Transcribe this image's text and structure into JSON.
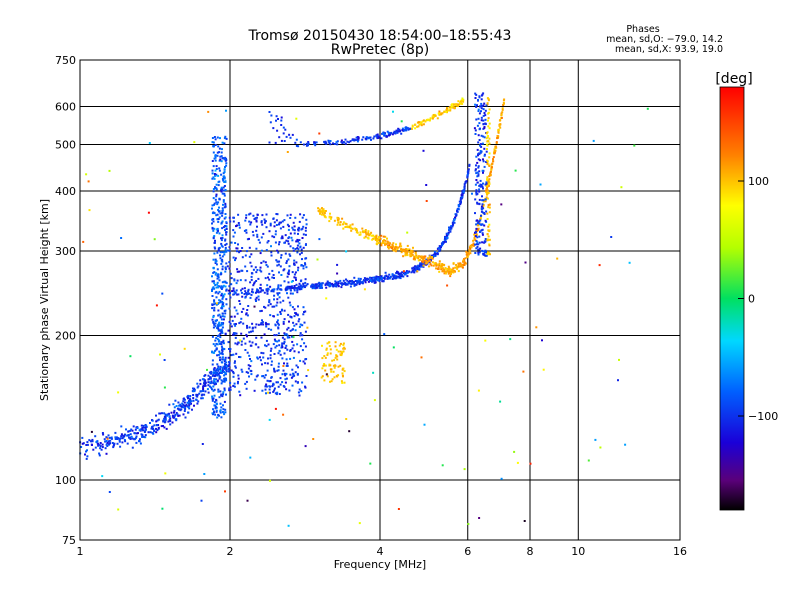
{
  "chart_data": {
    "type": "scatter",
    "title": "Tromsø 20150430 18:54:00–18:55:43",
    "subtitle": "RwPretec (8p)",
    "xlabel": "Frequency [MHz]",
    "ylabel": "Stationary phase Virtual Height [km]",
    "xscale": "log",
    "yscale": "log",
    "xlim": [
      1,
      16
    ],
    "ylim": [
      75,
      750
    ],
    "xticks": [
      1,
      2,
      4,
      6,
      8,
      10,
      16
    ],
    "xtick_labels": [
      "1",
      "2",
      "4",
      "6",
      "8",
      "10",
      "16"
    ],
    "yticks": [
      75,
      100,
      200,
      300,
      400,
      500,
      600,
      750
    ],
    "ytick_labels": [
      "75",
      "100",
      "200",
      "300",
      "400",
      "500",
      "600",
      "750"
    ],
    "grid": true,
    "stats": {
      "heading": "Phases",
      "o_line": "mean, sd,O: −79.0, 14.2",
      "x_line": "mean, sd,X:  93.9, 19.0"
    },
    "colorbar": {
      "label": "[deg]",
      "range": [
        -180,
        180
      ],
      "ticks": [
        100,
        0,
        -100
      ],
      "tick_labels": [
        "100",
        "0",
        "−100"
      ],
      "colormap": "rainbow"
    },
    "clusters": [
      {
        "desc": "low E/F1 trace",
        "x_range": [
          1.0,
          2.0
        ],
        "y_range": [
          115,
          185
        ],
        "phase": -95,
        "n": 420
      },
      {
        "desc": "vertical spread at ~1.9 MHz",
        "x_range": [
          1.83,
          1.98
        ],
        "y_range": [
          130,
          520
        ],
        "phase": -90,
        "n": 520
      },
      {
        "desc": "spread F block",
        "x_range": [
          1.98,
          2.85
        ],
        "y_range": [
          150,
          360
        ],
        "phase": -95,
        "n": 700
      },
      {
        "desc": "O-mode F2 trace",
        "x_range": [
          2.0,
          6.0
        ],
        "y_range": [
          245,
          450
        ],
        "phase": -100,
        "n": 600
      },
      {
        "desc": "X-mode F2 trace",
        "x_range": [
          3.0,
          7.0
        ],
        "y_range": [
          270,
          620
        ],
        "phase": 95,
        "n": 520
      },
      {
        "desc": "upper echo band",
        "x_range": [
          2.4,
          5.9
        ],
        "y_range": [
          490,
          640
        ],
        "phase": -95,
        "n": 260
      },
      {
        "desc": "cusp near 6.3 MHz",
        "x_range": [
          6.2,
          6.7
        ],
        "y_range": [
          290,
          640
        ],
        "phase": -90,
        "n": 280
      },
      {
        "desc": "patch near 3.2 MHz",
        "x_range": [
          3.05,
          3.4
        ],
        "y_range": [
          158,
          195
        ],
        "phase": 100,
        "n": 80
      },
      {
        "desc": "scattered",
        "x_range": [
          1.0,
          14.0
        ],
        "y_range": [
          80,
          600
        ],
        "phase": 0,
        "n": 120
      }
    ]
  }
}
